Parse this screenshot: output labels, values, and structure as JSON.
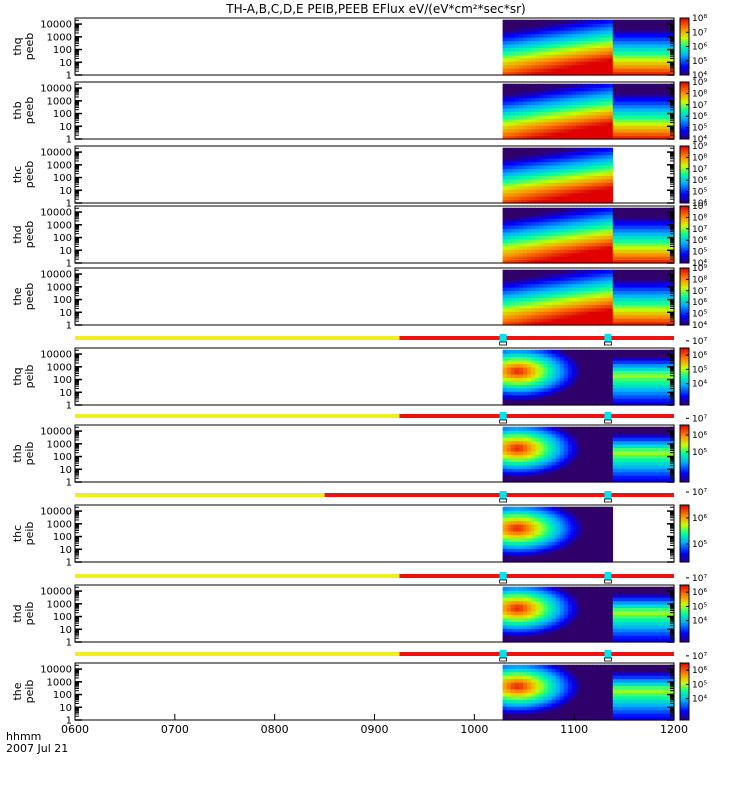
{
  "title": "TH-A,B,C,D,E PEIB,PEEB EFlux eV/(eV*cm²*sec*sr)",
  "footer": {
    "units_label": "hhmm",
    "date_label": "2007 Jul 21"
  },
  "colors": {
    "mode_slow": "#f2ee1e",
    "mode_fast": "#ef1010",
    "marker": "#00e5ee"
  },
  "chart_data": {
    "type": "heatmap",
    "x": {
      "label": "hhmm",
      "range": [
        "0600",
        "1200"
      ],
      "range_hours": [
        6,
        12
      ],
      "ticks": [
        "0600",
        "0700",
        "0800",
        "0900",
        "1000",
        "1100",
        "1200"
      ]
    },
    "y_scale": "log",
    "y_range_eV": [
      1,
      30000
    ],
    "y_ticks": [
      "10000",
      "1000",
      "100",
      "10",
      "1"
    ],
    "panels": [
      {
        "probe": "thq",
        "product": "peeb",
        "ylabel": [
          "thq",
          "peeb"
        ],
        "species": "electron",
        "data_start": "1017",
        "data_end": "1200",
        "mode_change": "1121",
        "colorbar": {
          "min_exp": 4,
          "max_exp": 8,
          "ticks": [
            "10⁸",
            "10⁷",
            "10⁶",
            "10⁵",
            "10⁴"
          ]
        }
      },
      {
        "probe": "thb",
        "product": "peeb",
        "ylabel": [
          "thb",
          "peeb"
        ],
        "species": "electron",
        "data_start": "1017",
        "data_end": "1200",
        "mode_change": "1121",
        "colorbar": {
          "min_exp": 4,
          "max_exp": 9,
          "ticks": [
            "10⁹",
            "10⁸",
            "10⁷",
            "10⁶",
            "10⁵",
            "10⁴"
          ]
        }
      },
      {
        "probe": "thc",
        "product": "peeb",
        "ylabel": [
          "thc",
          "peeb"
        ],
        "species": "electron",
        "data_start": "1017",
        "data_end": "1123",
        "mode_change": "",
        "colorbar": {
          "min_exp": 4,
          "max_exp": 9,
          "ticks": [
            "10⁹",
            "10⁸",
            "10⁷",
            "10⁶",
            "10⁵",
            "10⁴"
          ]
        }
      },
      {
        "probe": "thd",
        "product": "peeb",
        "ylabel": [
          "thd",
          "peeb"
        ],
        "species": "electron",
        "data_start": "1017",
        "data_end": "1200",
        "mode_change": "1121",
        "colorbar": {
          "min_exp": 4,
          "max_exp": 9,
          "ticks": [
            "10⁹",
            "10⁸",
            "10⁷",
            "10⁶",
            "10⁵",
            "10⁴"
          ]
        }
      },
      {
        "probe": "the",
        "product": "peeb",
        "ylabel": [
          "the",
          "peeb"
        ],
        "species": "electron",
        "data_start": "1017",
        "data_end": "1200",
        "mode_change": "1121",
        "colorbar": {
          "min_exp": 4,
          "max_exp": 9,
          "ticks": [
            "10⁹",
            "10⁸",
            "10⁷",
            "10⁶",
            "10⁵",
            "10⁴"
          ]
        }
      },
      {
        "probe": "thq",
        "product": "peib",
        "ylabel": [
          "thq",
          "peib"
        ],
        "species": "ion",
        "data_start": "1017",
        "data_end": "1200",
        "mode_change": "1121",
        "colorbar": {
          "min_exp": 3.5,
          "max_exp": 7.5,
          "ticks": [
            "10⁷",
            "10⁶",
            "10⁵",
            "10⁴"
          ]
        }
      },
      {
        "probe": "thb",
        "product": "peib",
        "ylabel": [
          "thb",
          "peib"
        ],
        "species": "ion",
        "data_start": "1017",
        "data_end": "1200",
        "mode_change": "1121",
        "colorbar": {
          "min_exp": 4.2,
          "max_exp": 7.6,
          "ticks": [
            "10⁷",
            "10⁶",
            "10⁵"
          ]
        }
      },
      {
        "probe": "thc",
        "product": "peib",
        "ylabel": [
          "thc",
          "peib"
        ],
        "species": "ion",
        "data_start": "1017",
        "data_end": "1123",
        "mode_change": "",
        "colorbar": {
          "min_exp": 5.3,
          "max_exp": 7.5,
          "ticks": [
            "10⁷",
            "10⁶",
            "10⁵"
          ]
        }
      },
      {
        "probe": "thd",
        "product": "peib",
        "ylabel": [
          "thd",
          "peib"
        ],
        "species": "ion",
        "data_start": "1017",
        "data_end": "1200",
        "mode_change": "1121",
        "colorbar": {
          "min_exp": 3.5,
          "max_exp": 7.5,
          "ticks": [
            "10⁷",
            "10⁶",
            "10⁵",
            "10⁴"
          ]
        }
      },
      {
        "probe": "the",
        "product": "peib",
        "ylabel": [
          "the",
          "peib"
        ],
        "species": "ion",
        "data_start": "1017",
        "data_end": "1200",
        "mode_change": "1121",
        "colorbar": {
          "min_exp": 3.5,
          "max_exp": 7.5,
          "ticks": [
            "10⁷",
            "10⁶",
            "10⁵",
            "10⁴"
          ]
        }
      }
    ],
    "mode_bars": [
      {
        "before_panel": 5,
        "slow_end": "0915",
        "markers": [
          "1017",
          "1120"
        ]
      },
      {
        "before_panel": 6,
        "slow_end": "0915",
        "markers": [
          "1017",
          "1120"
        ]
      },
      {
        "before_panel": 7,
        "slow_end": "0830",
        "markers": [
          "1017",
          "1120"
        ]
      },
      {
        "before_panel": 8,
        "slow_end": "0915",
        "markers": [
          "1017",
          "1120"
        ]
      },
      {
        "before_panel": 9,
        "slow_end": "0915",
        "markers": [
          "1017",
          "1120"
        ]
      }
    ]
  }
}
